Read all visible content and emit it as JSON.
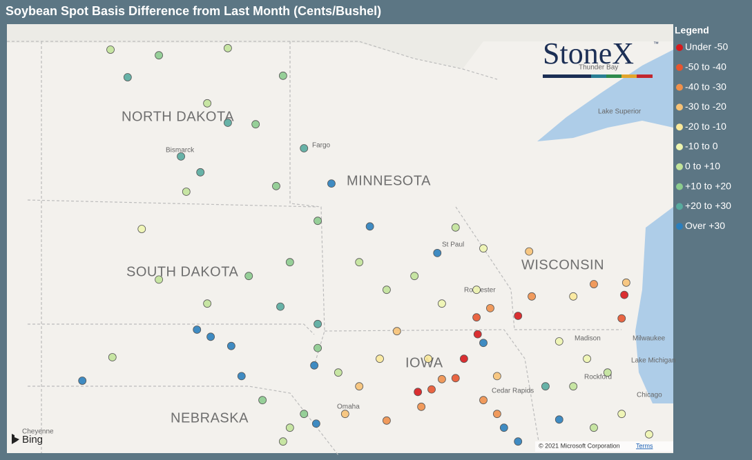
{
  "header": {
    "title": "Soybean Spot Basis Difference from Last Month (Cents/Bushel)"
  },
  "legend": {
    "title": "Legend",
    "items": [
      {
        "label": "Under -50",
        "color": "#d7191c"
      },
      {
        "label": "-50 to -40",
        "color": "#e8552f"
      },
      {
        "label": "-40 to -30",
        "color": "#f0904b"
      },
      {
        "label": "-30 to -20",
        "color": "#f7c276"
      },
      {
        "label": "-20 to -10",
        "color": "#fbe99a"
      },
      {
        "label": "-10 to 0",
        "color": "#eef5b0"
      },
      {
        "label": "0 to +10",
        "color": "#c2e39a"
      },
      {
        "label": "+10 to +20",
        "color": "#8ccb8e"
      },
      {
        "label": "+20 to +30",
        "color": "#58ab9e"
      },
      {
        "label": "Over +30",
        "color": "#2b7fbd"
      }
    ]
  },
  "map": {
    "states": [
      "NORTH DAKOTA",
      "MINNESOTA",
      "SOUTH DAKOTA",
      "WISCONSIN",
      "IOWA",
      "NEBRASKA"
    ],
    "places": [
      "Bismarck",
      "Fargo",
      "St Paul",
      "Rochester",
      "Madison",
      "Milwaukee",
      "Rockford",
      "Chicago",
      "Cedar Rapids",
      "Omaha",
      "Cheyenne",
      "Thunder Bay",
      "Lake Superior",
      "Lake Michigan"
    ],
    "sites": [
      [
        -101.78,
        48.8,
        6
      ],
      [
        -100.51,
        48.69,
        7
      ],
      [
        -98.7,
        48.83,
        6
      ],
      [
        -97.25,
        48.29,
        7
      ],
      [
        -99.24,
        47.75,
        6
      ],
      [
        -97.97,
        47.34,
        7
      ],
      [
        -101.33,
        48.26,
        8
      ],
      [
        -98.7,
        47.37,
        8
      ],
      [
        -99.93,
        46.71,
        8
      ],
      [
        -99.42,
        46.4,
        8
      ],
      [
        -96.7,
        46.87,
        8
      ],
      [
        -99.79,
        46.02,
        6
      ],
      [
        -97.43,
        46.13,
        7
      ],
      [
        -100.96,
        45.29,
        5
      ],
      [
        -100.51,
        44.3,
        6
      ],
      [
        -99.24,
        43.83,
        6
      ],
      [
        -98.15,
        44.37,
        7
      ],
      [
        -97.07,
        44.64,
        7
      ],
      [
        -99.51,
        43.32,
        9
      ],
      [
        -99.15,
        43.18,
        9
      ],
      [
        -98.61,
        43.0,
        9
      ],
      [
        -97.32,
        43.77,
        8
      ],
      [
        -96.34,
        43.43,
        8
      ],
      [
        -102.52,
        42.32,
        9
      ],
      [
        -98.34,
        42.41,
        9
      ],
      [
        -101.73,
        42.78,
        6
      ],
      [
        -96.34,
        45.45,
        7
      ],
      [
        -95.98,
        46.18,
        9
      ],
      [
        -94.97,
        45.34,
        9
      ],
      [
        -93.2,
        44.82,
        9
      ],
      [
        -95.25,
        44.64,
        6
      ],
      [
        -93.8,
        44.37,
        6
      ],
      [
        -92.72,
        45.32,
        6
      ],
      [
        -91.99,
        44.91,
        5
      ],
      [
        -94.53,
        44.1,
        6
      ],
      [
        -93.08,
        43.83,
        5
      ],
      [
        -92.17,
        44.1,
        5
      ],
      [
        -91.81,
        43.74,
        2
      ],
      [
        -90.79,
        44.85,
        3
      ],
      [
        -89.09,
        44.21,
        2
      ],
      [
        -88.29,
        44.0,
        0
      ],
      [
        -88.24,
        44.24,
        3
      ],
      [
        -88.36,
        43.54,
        1
      ],
      [
        -89.63,
        43.97,
        4
      ],
      [
        -91.08,
        43.59,
        0
      ],
      [
        -90.72,
        43.97,
        2
      ],
      [
        -90.0,
        43.09,
        5
      ],
      [
        -89.27,
        42.75,
        5
      ],
      [
        -88.73,
        42.48,
        6
      ],
      [
        -89.63,
        42.21,
        6
      ],
      [
        -94.26,
        43.29,
        3
      ],
      [
        -93.44,
        42.75,
        4
      ],
      [
        -93.71,
        42.1,
        0
      ],
      [
        -93.35,
        42.15,
        1
      ],
      [
        -93.08,
        42.35,
        2
      ],
      [
        -92.5,
        42.75,
        0
      ],
      [
        -92.72,
        42.37,
        1
      ],
      [
        -93.62,
        41.81,
        2
      ],
      [
        -94.53,
        41.54,
        2
      ],
      [
        -95.25,
        42.21,
        3
      ],
      [
        -94.71,
        42.75,
        4
      ],
      [
        -95.62,
        41.67,
        3
      ],
      [
        -91.99,
        41.94,
        2
      ],
      [
        -91.63,
        41.67,
        2
      ],
      [
        -92.14,
        43.23,
        0
      ],
      [
        -91.99,
        43.06,
        9
      ],
      [
        -92.17,
        43.56,
        1
      ],
      [
        -91.63,
        42.41,
        3
      ],
      [
        -96.34,
        42.96,
        7
      ],
      [
        -95.8,
        42.48,
        6
      ],
      [
        -96.43,
        42.62,
        9
      ],
      [
        -97.79,
        41.94,
        7
      ],
      [
        -97.07,
        41.4,
        6
      ],
      [
        -96.7,
        41.67,
        7
      ],
      [
        -96.38,
        41.48,
        9
      ],
      [
        -97.25,
        41.13,
        6
      ],
      [
        -91.45,
        41.4,
        9
      ],
      [
        -91.08,
        41.13,
        9
      ],
      [
        -90.36,
        42.21,
        8
      ],
      [
        -90.0,
        41.56,
        9
      ],
      [
        -89.09,
        41.4,
        6
      ],
      [
        -88.36,
        41.67,
        5
      ],
      [
        -87.64,
        41.27,
        5
      ]
    ]
  },
  "logo": {
    "name": "StoneX",
    "mark": "™"
  },
  "footer": {
    "provider": "Bing",
    "copyright": "© 2021 Microsoft Corporation",
    "terms": "Terms"
  }
}
